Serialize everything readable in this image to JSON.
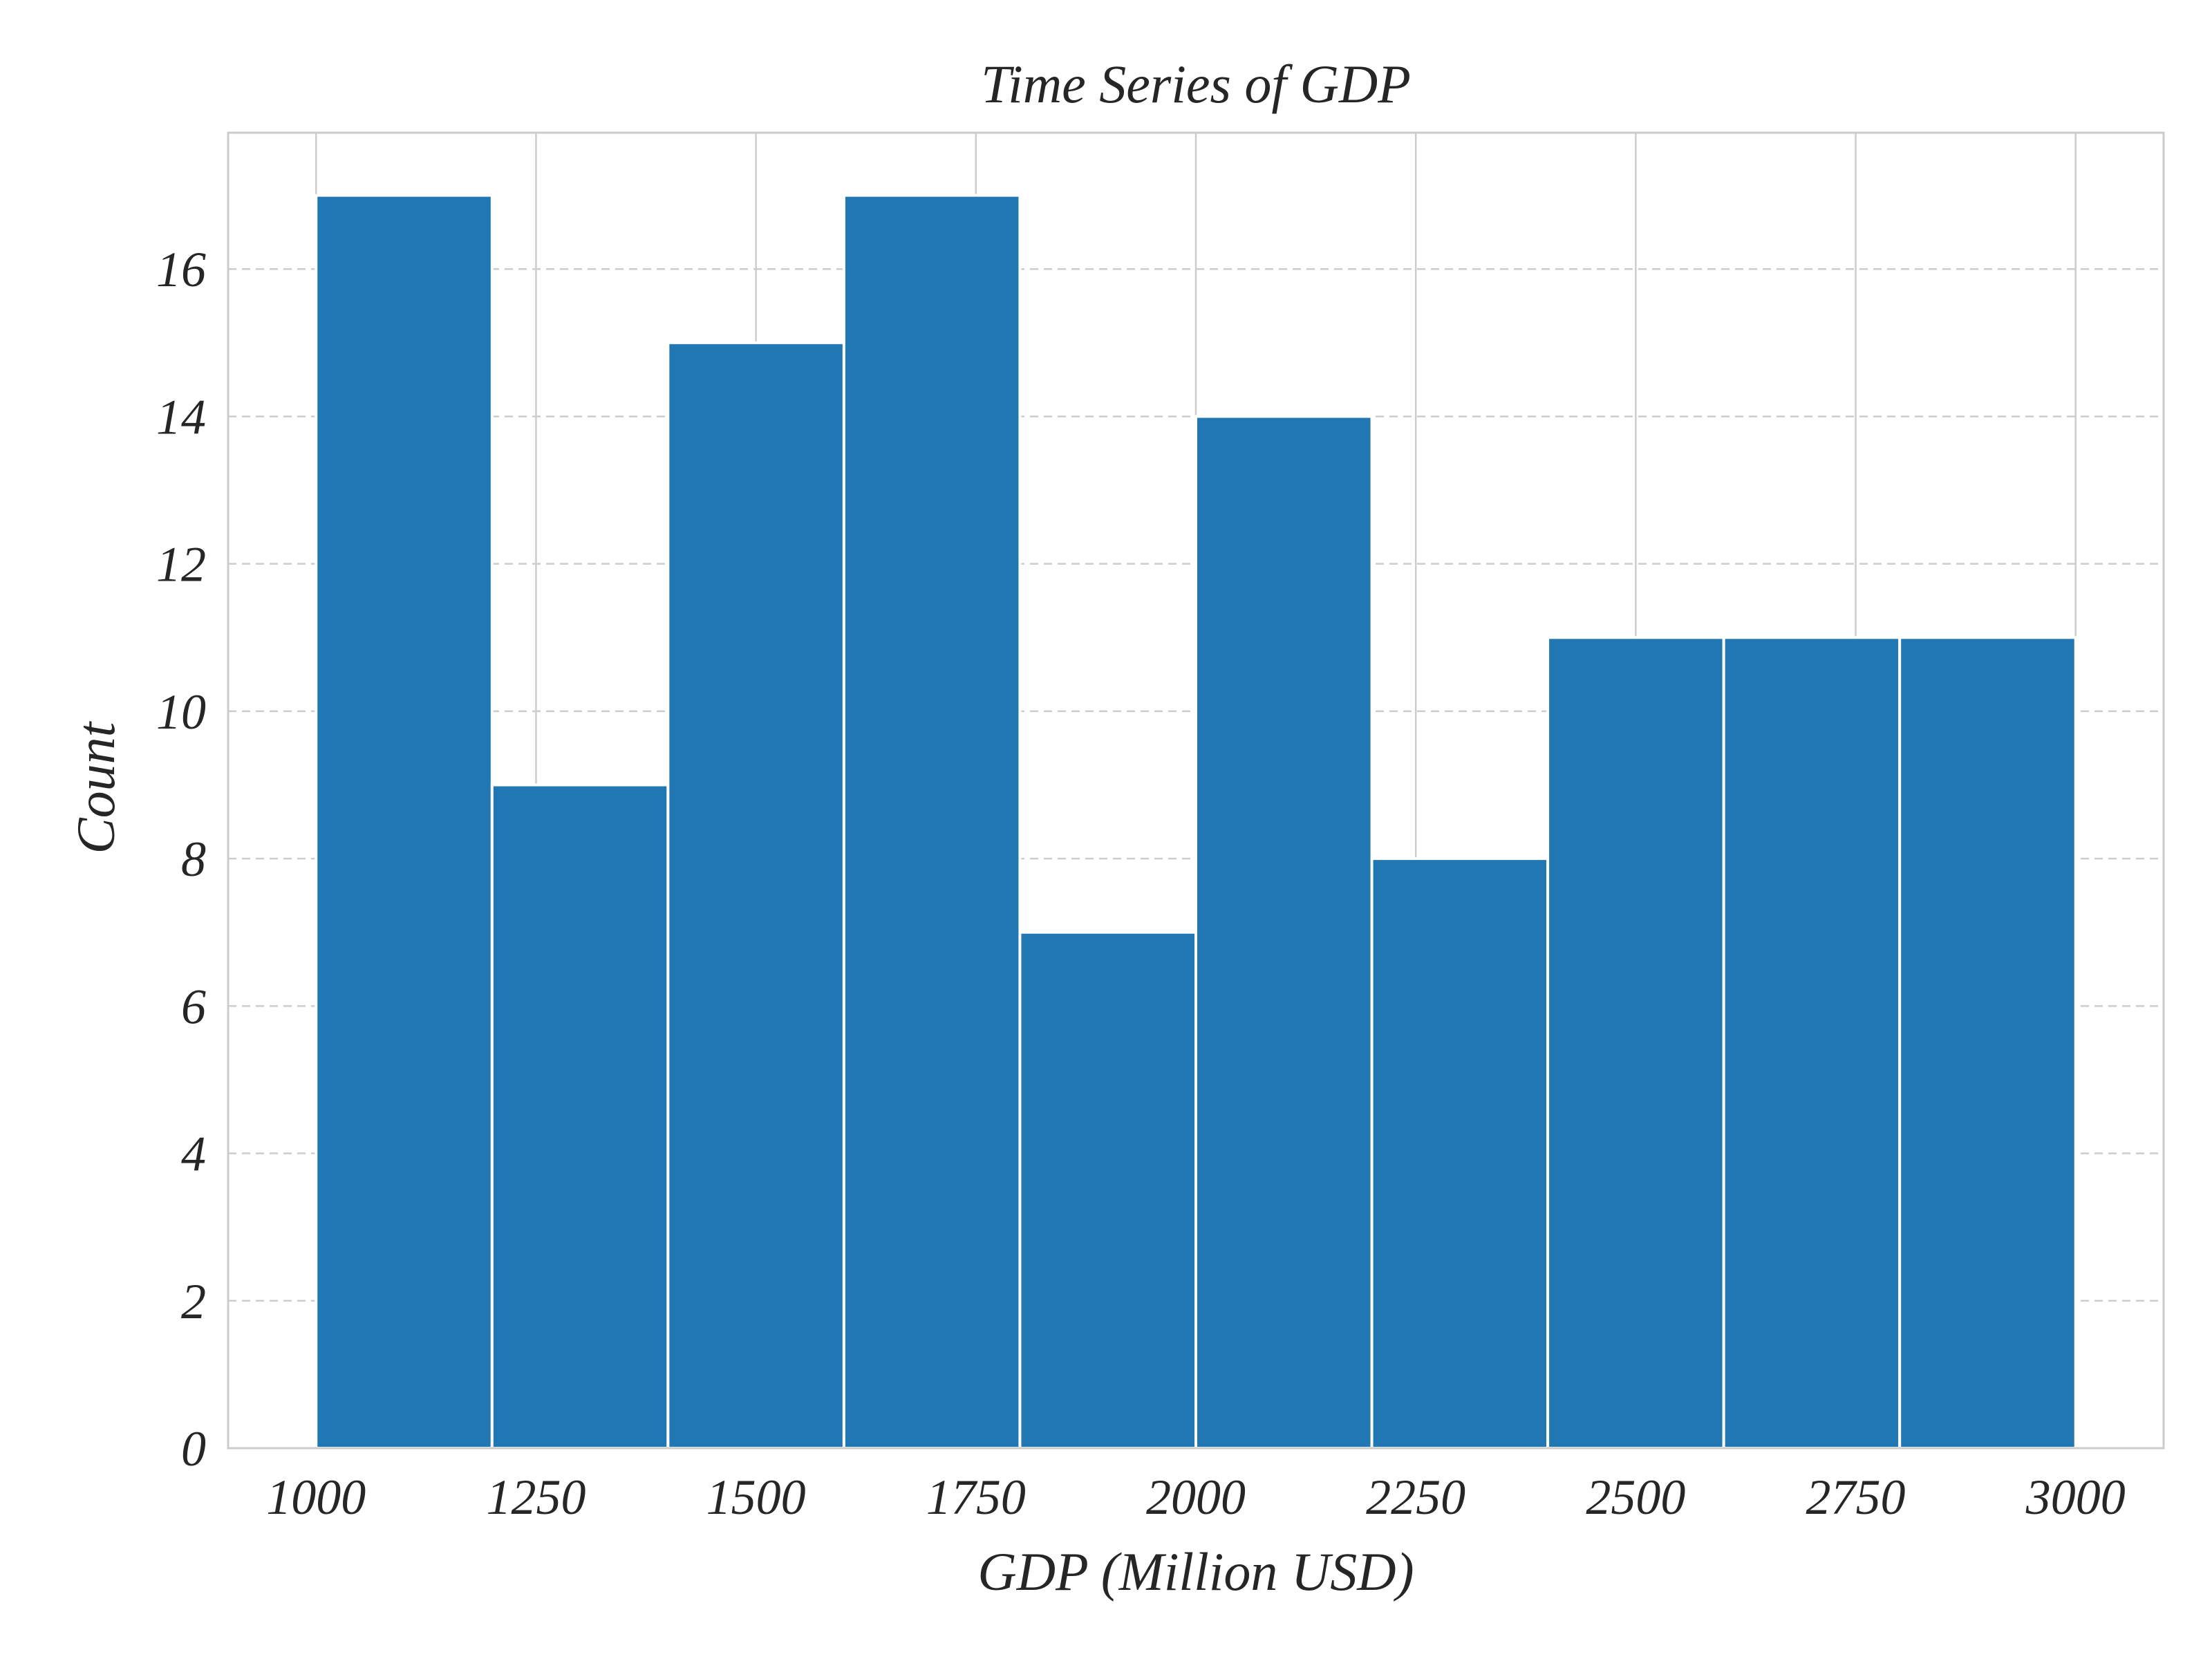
{
  "chart_data": {
    "type": "bar",
    "title": "Time Series of GDP",
    "xlabel": "GDP (Million USD)",
    "ylabel": "Count",
    "bins": [
      {
        "x0": 1000,
        "x1": 1200,
        "count": 17
      },
      {
        "x0": 1200,
        "x1": 1400,
        "count": 9
      },
      {
        "x0": 1400,
        "x1": 1600,
        "count": 15
      },
      {
        "x0": 1600,
        "x1": 1800,
        "count": 17
      },
      {
        "x0": 1800,
        "x1": 2000,
        "count": 7
      },
      {
        "x0": 2000,
        "x1": 2200,
        "count": 14
      },
      {
        "x0": 2200,
        "x1": 2400,
        "count": 8
      },
      {
        "x0": 2400,
        "x1": 2600,
        "count": 11
      },
      {
        "x0": 2600,
        "x1": 2800,
        "count": 11
      },
      {
        "x0": 2800,
        "x1": 3000,
        "count": 11
      }
    ],
    "x_ticks": [
      1000,
      1250,
      1500,
      1750,
      2000,
      2250,
      2500,
      2750,
      3000
    ],
    "y_ticks": [
      0,
      2,
      4,
      6,
      8,
      10,
      12,
      14,
      16
    ],
    "xlim": [
      900,
      3100
    ],
    "ylim": [
      0,
      17.85
    ],
    "grid": {
      "x": "solid",
      "y": "dashed"
    },
    "colors": {
      "bar": "#2077b4",
      "bar_edge": "#ffffff",
      "grid": "#cccccc",
      "axes_edge": "#cccccc",
      "text": "#262626"
    }
  }
}
